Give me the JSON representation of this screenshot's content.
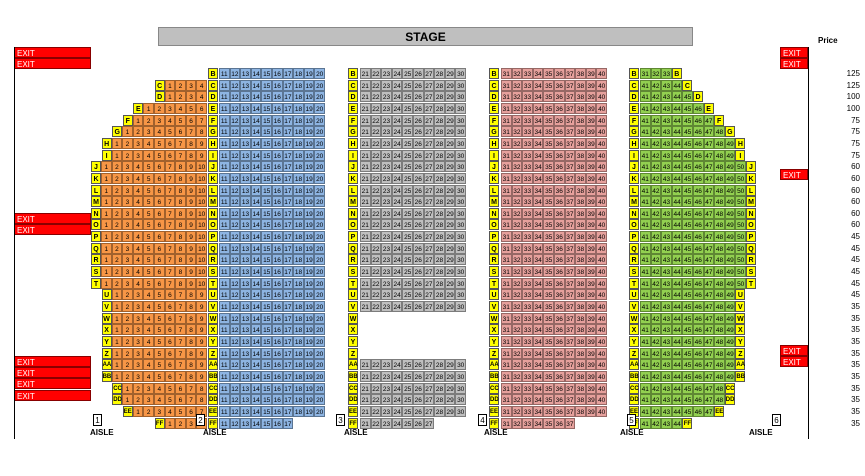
{
  "stage_label": "STAGE",
  "price_header": "Price",
  "aisle_label": "AISLE",
  "aisle_numbers": [
    "1",
    "2",
    "3",
    "4",
    "5",
    "6"
  ],
  "exit_label": "EXIT",
  "colors": {
    "section1": "#f79646",
    "section2": "#8db4e2",
    "section3": "#bfbfbf",
    "section4": "#e6a09c",
    "section5": "#92d050",
    "row_label": "#ffff00",
    "exit": "#ff0000"
  },
  "rows": [
    {
      "label": "B",
      "price": "125"
    },
    {
      "label": "C",
      "price": "125"
    },
    {
      "label": "D",
      "price": "100"
    },
    {
      "label": "E",
      "price": "100"
    },
    {
      "label": "F",
      "price": "75"
    },
    {
      "label": "G",
      "price": "75"
    },
    {
      "label": "H",
      "price": "75"
    },
    {
      "label": "I",
      "price": "75"
    },
    {
      "label": "J",
      "price": "60"
    },
    {
      "label": "K",
      "price": "60"
    },
    {
      "label": "L",
      "price": "60"
    },
    {
      "label": "M",
      "price": "60"
    },
    {
      "label": "N",
      "price": "60"
    },
    {
      "label": "O",
      "price": "60"
    },
    {
      "label": "P",
      "price": "45"
    },
    {
      "label": "Q",
      "price": "45"
    },
    {
      "label": "R",
      "price": "45"
    },
    {
      "label": "S",
      "price": "45"
    },
    {
      "label": "T",
      "price": "45"
    },
    {
      "label": "U",
      "price": "45"
    },
    {
      "label": "V",
      "price": "35"
    },
    {
      "label": "W",
      "price": "35"
    },
    {
      "label": "X",
      "price": "35"
    },
    {
      "label": "Y",
      "price": "35"
    },
    {
      "label": "Z",
      "price": "35"
    },
    {
      "label": "AA",
      "price": "35"
    },
    {
      "label": "BB",
      "price": "35"
    },
    {
      "label": "CC",
      "price": "35"
    },
    {
      "label": "DD",
      "price": "35"
    },
    {
      "label": "EE",
      "price": "35"
    },
    {
      "label": "FF",
      "price": "35"
    }
  ],
  "section1_seats": [
    [],
    [
      "1",
      "2",
      "3",
      "4"
    ],
    [
      "1",
      "2",
      "3",
      "4"
    ],
    [
      "1",
      "2",
      "3",
      "4",
      "5",
      "6"
    ],
    [
      "1",
      "2",
      "3",
      "4",
      "5",
      "6",
      "7"
    ],
    [
      "1",
      "2",
      "3",
      "4",
      "5",
      "6",
      "7",
      "8"
    ],
    [
      "1",
      "2",
      "3",
      "4",
      "5",
      "6",
      "7",
      "8",
      "9"
    ],
    [
      "1",
      "2",
      "3",
      "4",
      "5",
      "6",
      "7",
      "8",
      "9"
    ],
    [
      "1",
      "2",
      "3",
      "4",
      "5",
      "6",
      "7",
      "8",
      "9",
      "10"
    ],
    [
      "1",
      "2",
      "3",
      "4",
      "5",
      "6",
      "7",
      "8",
      "9",
      "10"
    ],
    [
      "1",
      "2",
      "3",
      "4",
      "5",
      "6",
      "7",
      "8",
      "9",
      "10"
    ],
    [
      "1",
      "2",
      "3",
      "4",
      "5",
      "6",
      "7",
      "8",
      "9",
      "10"
    ],
    [
      "1",
      "2",
      "3",
      "4",
      "5",
      "6",
      "7",
      "8",
      "9",
      "10"
    ],
    [
      "1",
      "2",
      "3",
      "4",
      "5",
      "6",
      "7",
      "8",
      "9",
      "10"
    ],
    [
      "1",
      "2",
      "3",
      "4",
      "5",
      "6",
      "7",
      "8",
      "9",
      "10"
    ],
    [
      "1",
      "2",
      "3",
      "4",
      "5",
      "6",
      "7",
      "8",
      "9",
      "10"
    ],
    [
      "1",
      "2",
      "3",
      "4",
      "5",
      "6",
      "7",
      "8",
      "9",
      "10"
    ],
    [
      "1",
      "2",
      "3",
      "4",
      "5",
      "6",
      "7",
      "8",
      "9",
      "10"
    ],
    [
      "1",
      "2",
      "3",
      "4",
      "5",
      "6",
      "7",
      "8",
      "9",
      "10"
    ],
    [
      "1",
      "2",
      "3",
      "4",
      "5",
      "6",
      "7",
      "8",
      "9"
    ],
    [
      "1",
      "2",
      "3",
      "4",
      "5",
      "6",
      "7",
      "8",
      "9"
    ],
    [
      "1",
      "2",
      "3",
      "4",
      "5",
      "6",
      "7",
      "8",
      "9"
    ],
    [
      "1",
      "2",
      "3",
      "4",
      "5",
      "6",
      "7",
      "8",
      "9"
    ],
    [
      "1",
      "2",
      "3",
      "4",
      "5",
      "6",
      "7",
      "8",
      "9"
    ],
    [
      "1",
      "2",
      "3",
      "4",
      "5",
      "6",
      "7",
      "8",
      "9"
    ],
    [
      "1",
      "2",
      "3",
      "4",
      "5",
      "6",
      "7",
      "8",
      "9"
    ],
    [
      "1",
      "2",
      "3",
      "4",
      "5",
      "6",
      "7",
      "8",
      "9"
    ],
    [
      "1",
      "2",
      "3",
      "4",
      "5",
      "6",
      "7",
      "8"
    ],
    [
      "1",
      "2",
      "3",
      "4",
      "5",
      "6",
      "7",
      "8"
    ],
    [
      "1",
      "2",
      "3",
      "4",
      "5",
      "6",
      "7"
    ],
    [
      "1",
      "2",
      "3",
      "4"
    ]
  ],
  "section2_seats": [
    "11",
    "12",
    "13",
    "14",
    "15",
    "16",
    "17",
    "18",
    "19",
    "20"
  ],
  "section2_ff": [
    "11",
    "12",
    "13",
    "14",
    "15",
    "16",
    "17"
  ],
  "section3_seats": [
    "21",
    "22",
    "23",
    "24",
    "25",
    "26",
    "27",
    "28",
    "29",
    "30"
  ],
  "section3_ff": [
    "21",
    "22",
    "23",
    "24",
    "25",
    "26",
    "27"
  ],
  "section4_seats": [
    "31",
    "32",
    "33",
    "34",
    "35",
    "36",
    "37",
    "38",
    "39",
    "40"
  ],
  "section4_ff": [
    "31",
    "32",
    "33",
    "34",
    "35",
    "36",
    "37"
  ],
  "section5_seats": [
    [
      "31",
      "32",
      "33"
    ],
    [
      "41",
      "42",
      "43",
      "44"
    ],
    [
      "41",
      "42",
      "43",
      "44",
      "45"
    ],
    [
      "41",
      "42",
      "43",
      "44",
      "45",
      "46"
    ],
    [
      "41",
      "42",
      "43",
      "44",
      "45",
      "46",
      "47"
    ],
    [
      "41",
      "42",
      "43",
      "44",
      "45",
      "46",
      "47",
      "48"
    ],
    [
      "41",
      "42",
      "43",
      "44",
      "45",
      "46",
      "47",
      "48",
      "49"
    ],
    [
      "41",
      "42",
      "43",
      "44",
      "45",
      "46",
      "47",
      "48",
      "49"
    ],
    [
      "41",
      "42",
      "43",
      "44",
      "45",
      "46",
      "47",
      "48",
      "49",
      "50"
    ],
    [
      "41",
      "42",
      "43",
      "44",
      "45",
      "46",
      "47",
      "48",
      "49",
      "50"
    ],
    [
      "41",
      "42",
      "43",
      "44",
      "45",
      "46",
      "47",
      "48",
      "49",
      "50"
    ],
    [
      "41",
      "42",
      "43",
      "44",
      "45",
      "46",
      "47",
      "48",
      "49",
      "50"
    ],
    [
      "41",
      "42",
      "43",
      "44",
      "45",
      "46",
      "47",
      "48",
      "49",
      "50"
    ],
    [
      "41",
      "42",
      "43",
      "44",
      "45",
      "46",
      "47",
      "48",
      "49",
      "50"
    ],
    [
      "41",
      "42",
      "43",
      "44",
      "45",
      "46",
      "47",
      "48",
      "49",
      "50"
    ],
    [
      "41",
      "42",
      "43",
      "44",
      "45",
      "46",
      "47",
      "48",
      "49",
      "50"
    ],
    [
      "41",
      "42",
      "43",
      "44",
      "45",
      "46",
      "47",
      "48",
      "49",
      "50"
    ],
    [
      "41",
      "42",
      "43",
      "44",
      "45",
      "46",
      "47",
      "48",
      "49",
      "50"
    ],
    [
      "41",
      "42",
      "43",
      "44",
      "45",
      "46",
      "47",
      "48",
      "49",
      "50"
    ],
    [
      "41",
      "42",
      "43",
      "44",
      "45",
      "46",
      "47",
      "48",
      "49"
    ],
    [
      "41",
      "42",
      "43",
      "44",
      "45",
      "46",
      "47",
      "48",
      "49"
    ],
    [
      "41",
      "42",
      "43",
      "44",
      "45",
      "46",
      "47",
      "48",
      "49"
    ],
    [
      "41",
      "42",
      "43",
      "44",
      "45",
      "46",
      "47",
      "48",
      "49"
    ],
    [
      "41",
      "42",
      "43",
      "44",
      "45",
      "46",
      "47",
      "48",
      "49"
    ],
    [
      "41",
      "42",
      "43",
      "44",
      "45",
      "46",
      "47",
      "48",
      "49"
    ],
    [
      "41",
      "42",
      "43",
      "44",
      "45",
      "46",
      "47",
      "48",
      "49"
    ],
    [
      "41",
      "42",
      "43",
      "44",
      "45",
      "46",
      "47",
      "48",
      "49"
    ],
    [
      "41",
      "42",
      "43",
      "44",
      "45",
      "46",
      "47",
      "48"
    ],
    [
      "41",
      "42",
      "43",
      "44",
      "45",
      "46",
      "47",
      "48"
    ],
    [
      "41",
      "42",
      "43",
      "44",
      "45",
      "46",
      "47"
    ],
    [
      "41",
      "42",
      "43",
      "44"
    ]
  ]
}
